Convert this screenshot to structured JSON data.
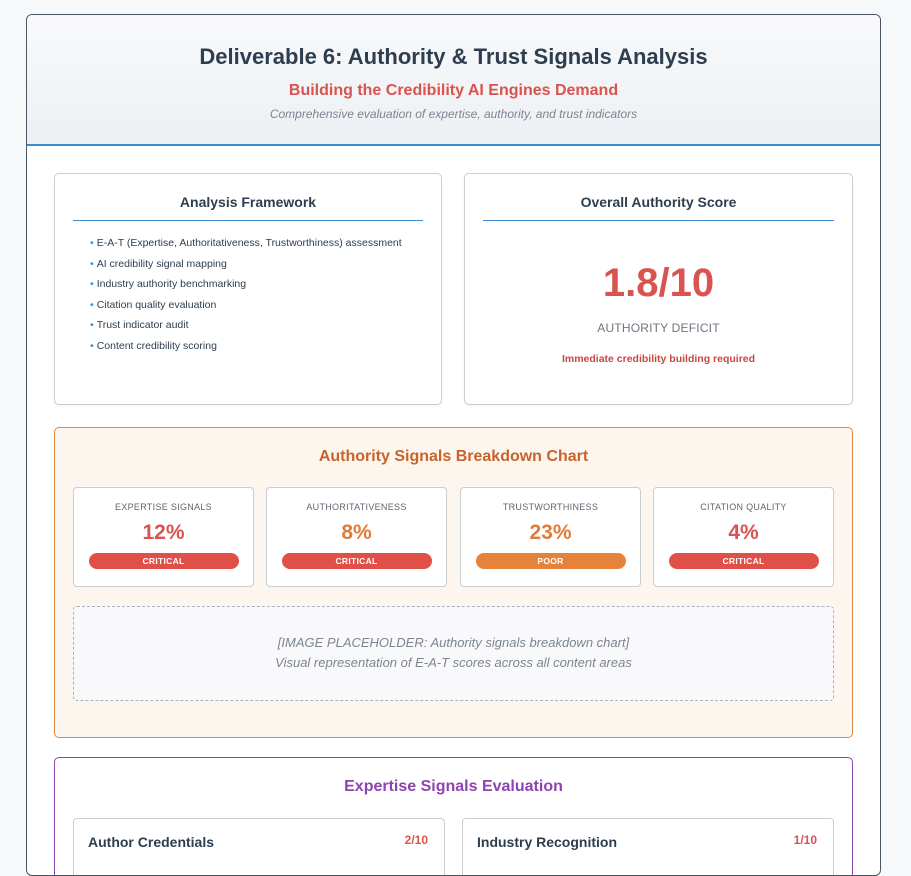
{
  "header": {
    "title": "Deliverable 6: Authority & Trust Signals Analysis",
    "subtitle": "Building the Credibility AI Engines Demand",
    "tagline": "Comprehensive evaluation of expertise, authority, and trust indicators"
  },
  "framework": {
    "title": "Analysis Framework",
    "items": [
      "E-A-T (Expertise, Authoritativeness, Trustworthiness) assessment",
      "AI credibility signal mapping",
      "Industry authority benchmarking",
      "Citation quality evaluation",
      "Trust indicator audit",
      "Content credibility scoring"
    ]
  },
  "overall_score": {
    "title": "Overall Authority Score",
    "value": "1.8/10",
    "label": "AUTHORITY DEFICIT",
    "note": "Immediate credibility building required"
  },
  "breakdown": {
    "title": "Authority Signals Breakdown Chart",
    "metrics": [
      {
        "label": "EXPERTISE SIGNALS",
        "value": "12%",
        "status": "CRITICAL",
        "value_color": "#d9534f",
        "badge_color": "#e05049"
      },
      {
        "label": "AUTHORITATIVENESS",
        "value": "8%",
        "status": "CRITICAL",
        "value_color": "#e07b39",
        "badge_color": "#e05049"
      },
      {
        "label": "TRUSTWORTHINESS",
        "value": "23%",
        "status": "POOR",
        "value_color": "#e07b39",
        "badge_color": "#e5833a"
      },
      {
        "label": "CITATION QUALITY",
        "value": "4%",
        "status": "CRITICAL",
        "value_color": "#d9534f",
        "badge_color": "#e05049"
      }
    ],
    "placeholder": {
      "line1": "[IMAGE PLACEHOLDER: Authority signals breakdown chart]",
      "line2": "Visual representation of E-A-T scores across all content areas"
    }
  },
  "expertise": {
    "title": "Expertise Signals Evaluation",
    "cards": [
      {
        "title": "Author Credentials",
        "score": "2/10"
      },
      {
        "title": "Industry Recognition",
        "score": "1/10"
      }
    ]
  }
}
